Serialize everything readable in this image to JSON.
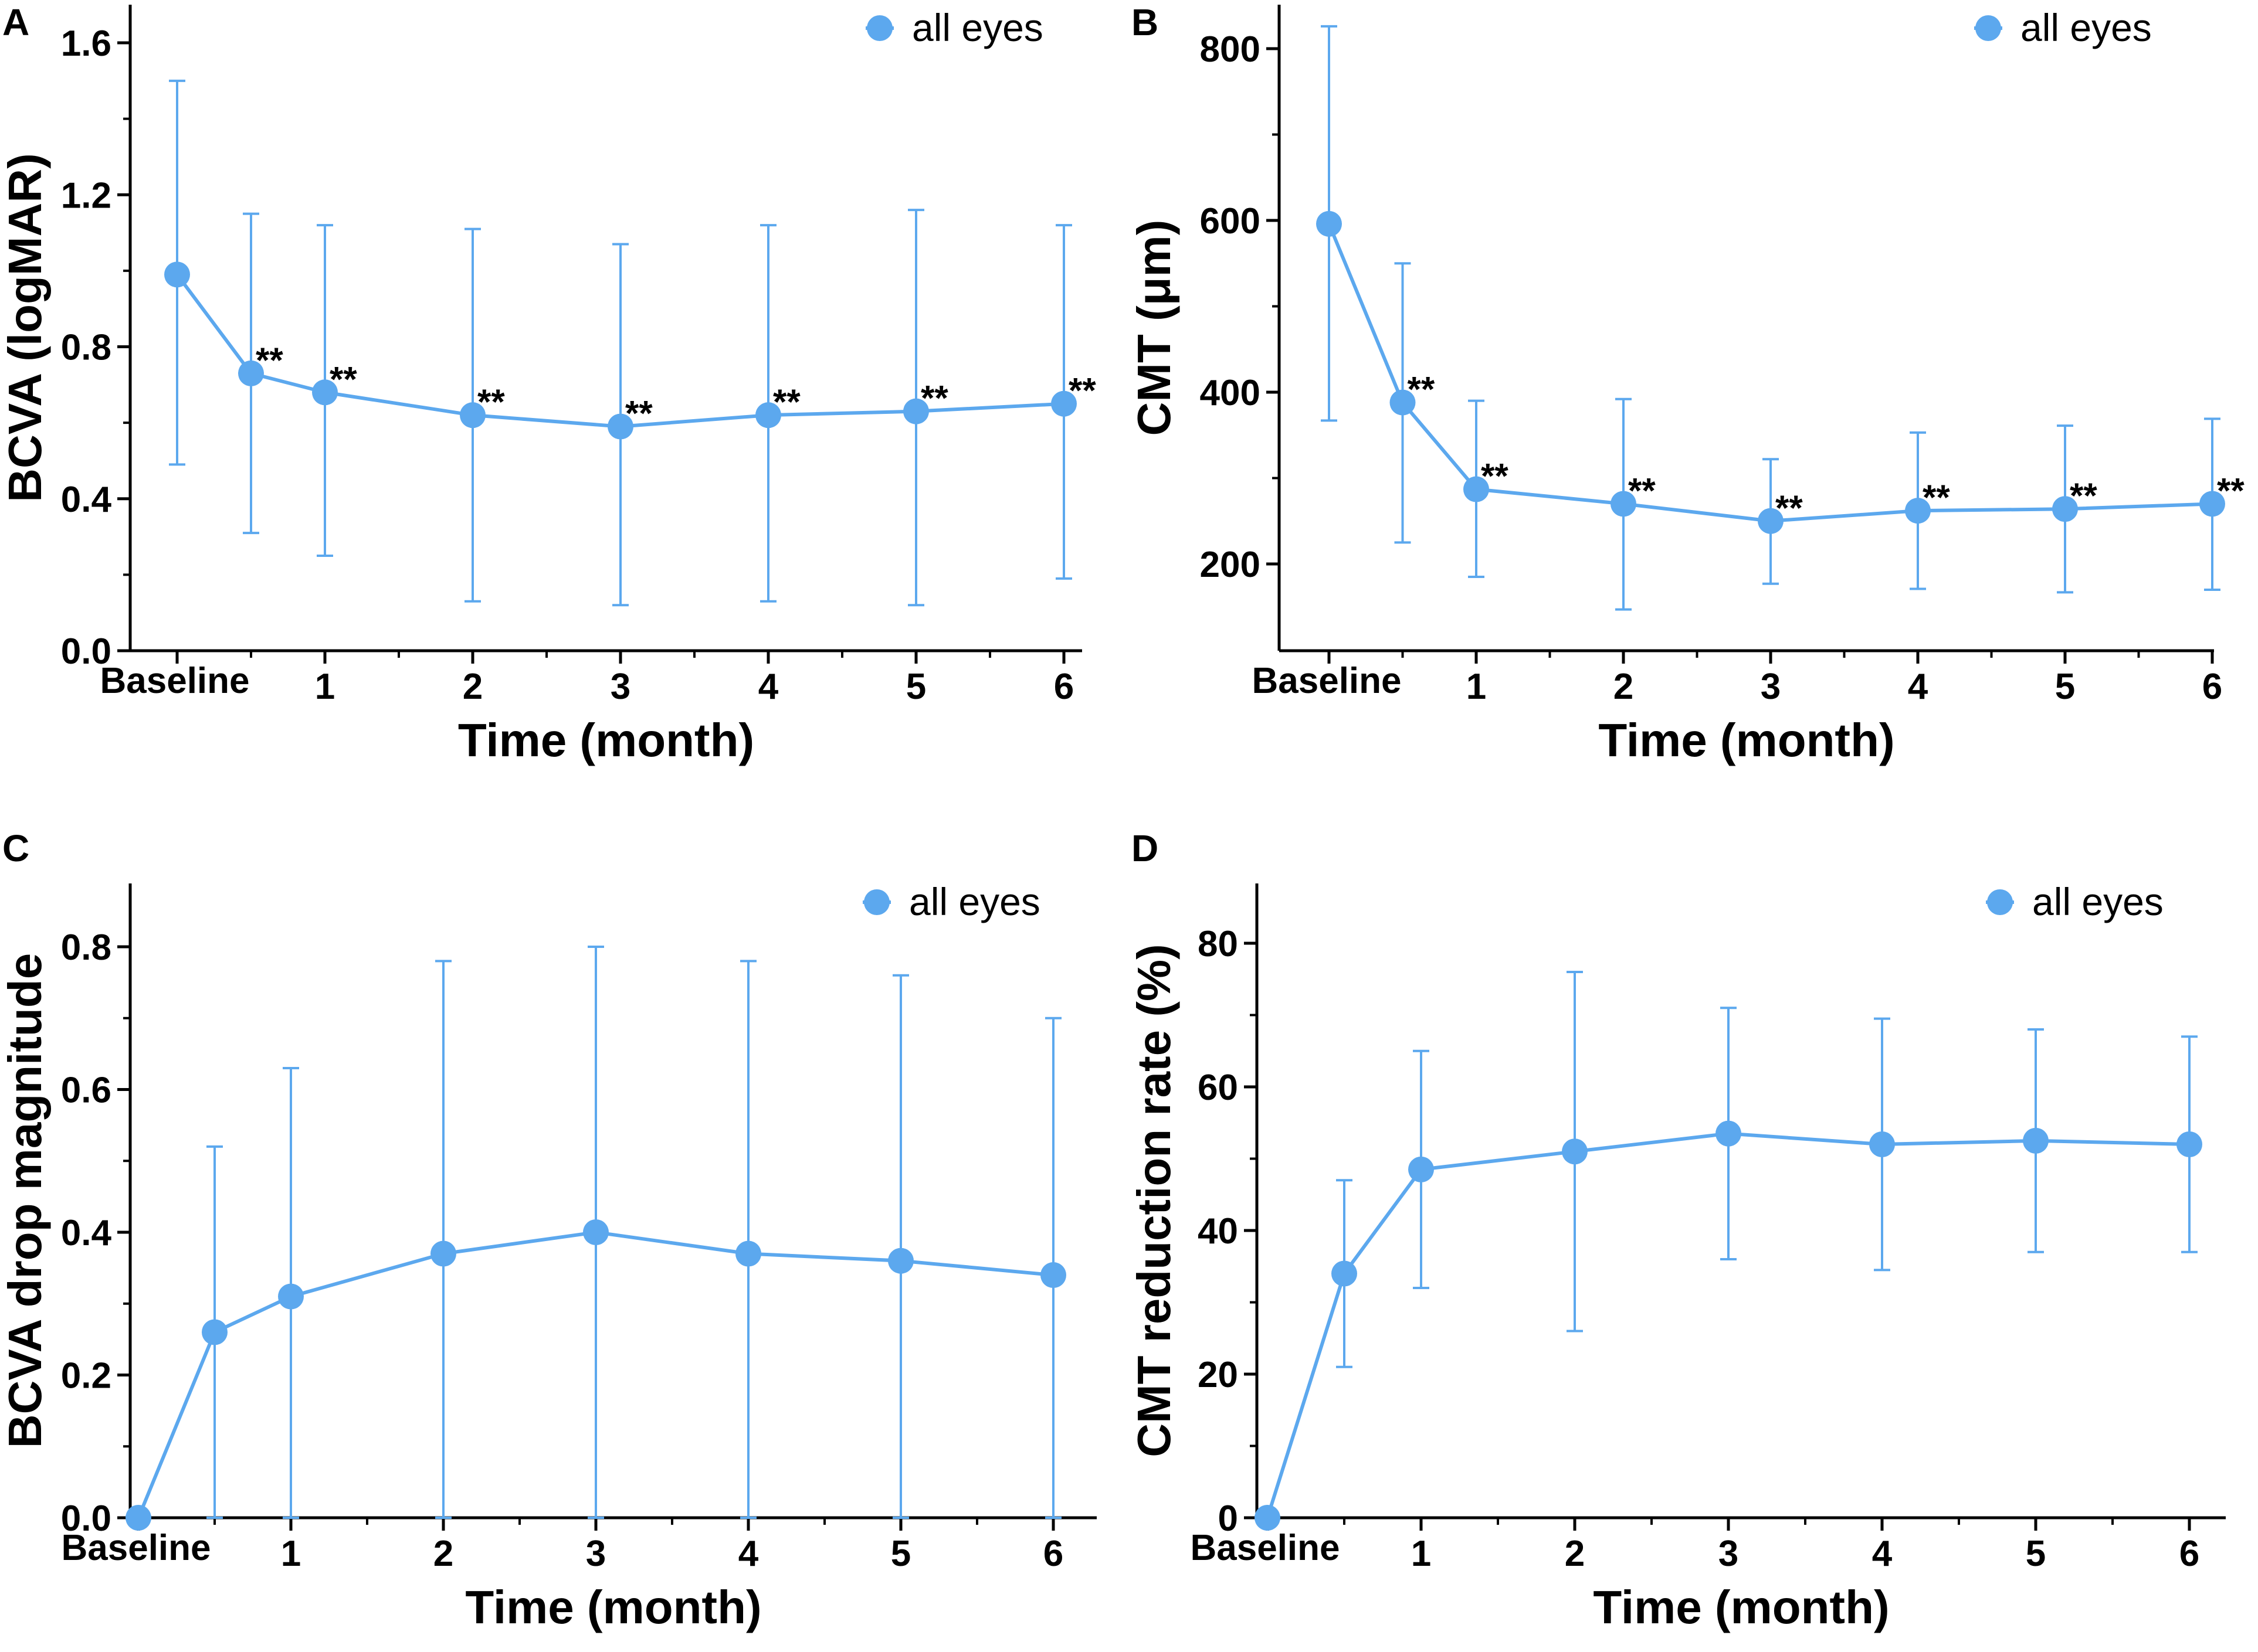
{
  "chart_data": [
    {
      "panel": "A",
      "type": "line",
      "title": "",
      "xlabel": "Time (month)",
      "ylabel": "BCVA (logMAR)",
      "ylim": [
        0,
        1.6
      ],
      "y_ticks": [
        0.0,
        0.4,
        0.8,
        1.2,
        1.6
      ],
      "y_tick_labels": [
        "0.0",
        "0.4",
        "0.8",
        "1.2",
        "1.6"
      ],
      "x_ticks": [
        0,
        1,
        2,
        3,
        4,
        5,
        6
      ],
      "x_tick_labels": [
        "Baseline",
        "1",
        "2",
        "3",
        "4",
        "5",
        "6"
      ],
      "x": [
        0,
        0.5,
        1,
        2,
        3,
        4,
        5,
        6
      ],
      "legend": "all eyes",
      "legend_position": "top-right",
      "series": [
        {
          "name": "all eyes",
          "values": [
            0.99,
            0.73,
            0.68,
            0.62,
            0.59,
            0.62,
            0.63,
            0.65
          ],
          "err_low": [
            0.49,
            0.31,
            0.25,
            0.13,
            0.12,
            0.13,
            0.12,
            0.19
          ],
          "err_high": [
            1.5,
            1.15,
            1.12,
            1.11,
            1.07,
            1.12,
            1.16,
            1.12
          ],
          "labels": [
            "",
            "**",
            "**",
            "**",
            "**",
            "**",
            "**",
            "**"
          ]
        }
      ]
    },
    {
      "panel": "B",
      "type": "line",
      "title": "",
      "xlabel": "Time (month)",
      "ylabel": "CMT (μm)",
      "ylim": [
        100,
        870
      ],
      "y_ticks": [
        200,
        400,
        600,
        800
      ],
      "y_tick_labels": [
        "200",
        "400",
        "600",
        "800"
      ],
      "x_ticks": [
        0,
        1,
        2,
        3,
        4,
        5,
        6
      ],
      "x_tick_labels": [
        "Baseline",
        "1",
        "2",
        "3",
        "4",
        "5",
        "6"
      ],
      "x": [
        0,
        0.5,
        1,
        2,
        3,
        4,
        5,
        6
      ],
      "legend": "all eyes",
      "legend_position": "top-right",
      "series": [
        {
          "name": "all eyes",
          "values": [
            596,
            388,
            287,
            270,
            250,
            262,
            264,
            270
          ],
          "err_low": [
            367,
            225,
            185,
            147,
            177,
            171,
            167,
            170
          ],
          "err_high": [
            826,
            550,
            390,
            392,
            322,
            353,
            361,
            369
          ],
          "labels": [
            "",
            "**",
            "**",
            "**",
            "**",
            "**",
            "**",
            "**"
          ]
        }
      ]
    },
    {
      "panel": "C",
      "type": "line",
      "title": "",
      "xlabel": "Time (month)",
      "ylabel": "BCVA drop magnitude",
      "ylim": [
        0,
        0.9
      ],
      "y_ticks": [
        0.0,
        0.2,
        0.4,
        0.6,
        0.8
      ],
      "y_tick_labels": [
        "0.0",
        "0.2",
        "0.4",
        "0.6",
        "0.8"
      ],
      "x_ticks": [
        0,
        1,
        2,
        3,
        4,
        5,
        6
      ],
      "x_tick_labels": [
        "Baseline",
        "1",
        "2",
        "3",
        "4",
        "5",
        "6"
      ],
      "x": [
        0,
        0.5,
        1,
        2,
        3,
        4,
        5,
        6
      ],
      "legend": "all eyes",
      "legend_position": "top-right",
      "series": [
        {
          "name": "all eyes",
          "values": [
            0.0,
            0.26,
            0.31,
            0.37,
            0.4,
            0.37,
            0.36,
            0.34
          ],
          "err_low": [
            0.0,
            0.0,
            0.0,
            0.0,
            0.0,
            0.0,
            0.0,
            0.0
          ],
          "err_high": [
            0.0,
            0.52,
            0.63,
            0.78,
            0.8,
            0.78,
            0.76,
            0.7
          ],
          "labels": [
            "",
            "",
            "",
            "",
            "",
            "",
            "",
            ""
          ]
        }
      ]
    },
    {
      "panel": "D",
      "type": "line",
      "title": "",
      "xlabel": "Time (month)",
      "ylabel": "CMT reduction rate (%)",
      "ylim": [
        0,
        80
      ],
      "y_ticks": [
        0,
        20,
        40,
        60,
        80
      ],
      "y_tick_labels": [
        "0",
        "20",
        "40",
        "60",
        "80"
      ],
      "x_ticks": [
        0,
        1,
        2,
        3,
        4,
        5,
        6
      ],
      "x_tick_labels": [
        "Baseline",
        "1",
        "2",
        "3",
        "4",
        "5",
        "6"
      ],
      "x": [
        0,
        0.5,
        1,
        2,
        3,
        4,
        5,
        6
      ],
      "legend": "all eyes",
      "legend_position": "top-right",
      "series": [
        {
          "name": "all eyes",
          "values": [
            0,
            34,
            48.5,
            51,
            53.5,
            52,
            52.5,
            52
          ],
          "err_low": [
            0,
            21,
            32,
            26,
            36,
            34.5,
            37,
            37
          ],
          "err_high": [
            0,
            47,
            65,
            76,
            71,
            69.5,
            68,
            67
          ],
          "labels": [
            "",
            "",
            "",
            "",
            "",
            "",
            "",
            ""
          ]
        }
      ]
    }
  ]
}
